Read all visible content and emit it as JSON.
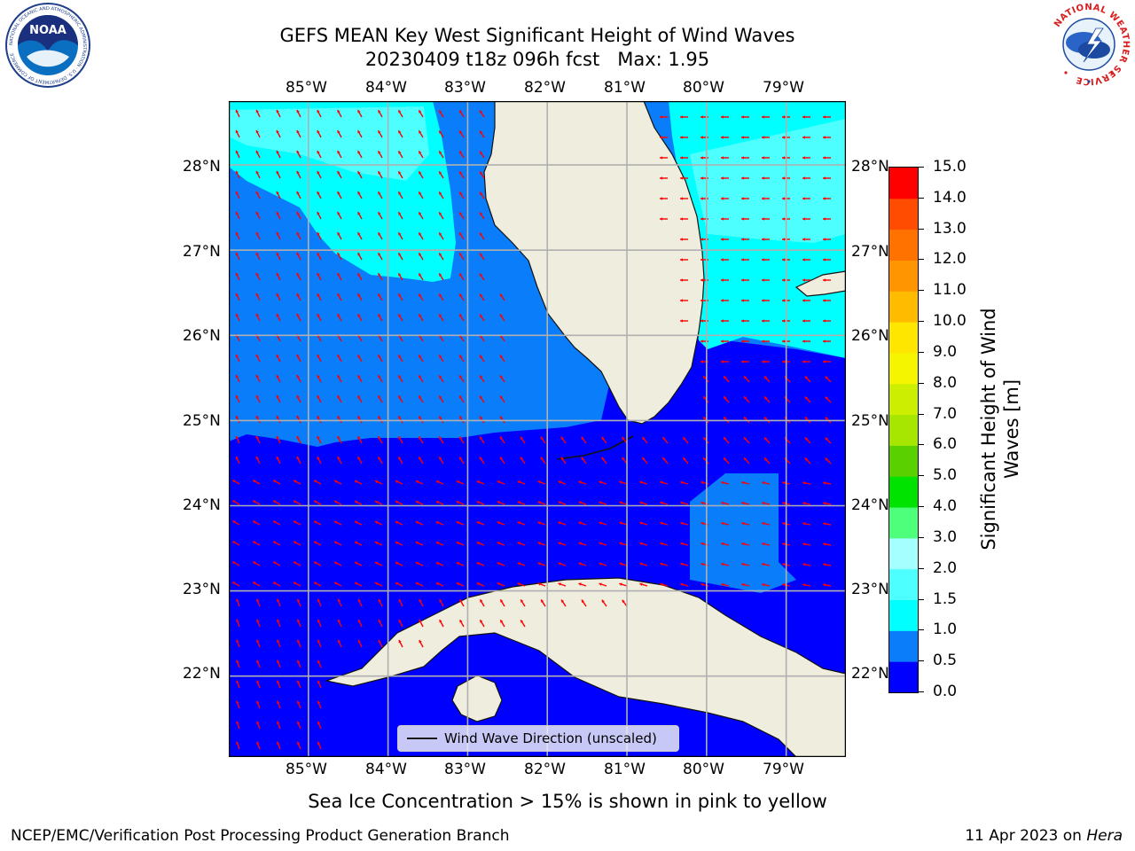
{
  "title_line1": "GEFS MEAN Key West Significant Height of Wind Waves",
  "title_line2": "20230409 t18z 096h fcst   Max: 1.95",
  "logos": {
    "noaa_text": "NOAA",
    "noaa_ring": "NATIONAL OCEANIC AND ATMOSPHERIC ADMINISTRATION · U.S. DEPARTMENT OF COMMERCE",
    "nws_ring": "NATIONAL WEATHER SERVICE"
  },
  "map": {
    "lon_labels": [
      "85°W",
      "84°W",
      "83°W",
      "82°W",
      "81°W",
      "80°W",
      "79°W"
    ],
    "lon_values": [
      -85,
      -84,
      -83,
      -82,
      -81,
      -80,
      -79
    ],
    "lat_labels": [
      "28°N",
      "27°N",
      "26°N",
      "25°N",
      "24°N",
      "23°N",
      "22°N"
    ],
    "lat_values": [
      28,
      27,
      26,
      25,
      24,
      23,
      22
    ],
    "extent": {
      "lon_min": -86,
      "lon_max": -78.25,
      "lat_min": 21.05,
      "lat_max": 28.75
    },
    "grid": true,
    "vector_color": "#ff0000",
    "land_color": "#efeddd"
  },
  "legend": {
    "label": "Wind Wave Direction (unscaled)",
    "placement": "bottom-center"
  },
  "colorbar": {
    "label": "Significant Height of Wind\nWaves [m]",
    "ticks": [
      "0.0",
      "0.5",
      "1.0",
      "1.5",
      "2.0",
      "3.0",
      "4.0",
      "5.0",
      "6.0",
      "7.0",
      "8.0",
      "9.0",
      "10.0",
      "11.0",
      "12.0",
      "13.0",
      "14.0",
      "15.0"
    ],
    "colors": [
      "#0000ff",
      "#0a7dfa",
      "#00ffff",
      "#4dffff",
      "#a6ffff",
      "#4dff7a",
      "#00e300",
      "#5ad000",
      "#a6e600",
      "#ccee00",
      "#f5f500",
      "#ffe600",
      "#ffbb00",
      "#ff9500",
      "#ff7200",
      "#ff4c00",
      "#ff0000"
    ]
  },
  "sea_ice_note": "Sea Ice Concentration > 15% is shown in pink to yellow",
  "footer_left": "NCEP/EMC/Verification Post Processing Product Generation Branch",
  "footer_date": "11 Apr 2023 on ",
  "footer_host": "Hera"
}
